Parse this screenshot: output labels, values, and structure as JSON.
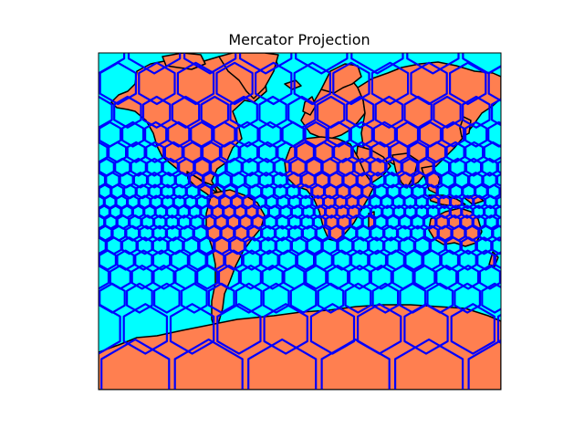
{
  "figure": {
    "title": "Mercator Projection"
  },
  "map": {
    "projection": "mercator",
    "ocean_color": "#00ffff",
    "land_color": "#ff7f50",
    "coastline_color": "#000000",
    "cell_edge_color": "#0000ff",
    "frame_color": "#000000",
    "overlay": "hexagonal cell grid"
  }
}
